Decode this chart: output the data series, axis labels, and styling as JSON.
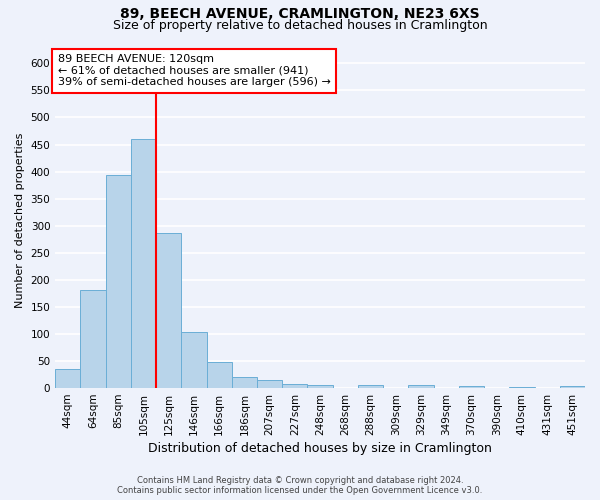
{
  "title": "89, BEECH AVENUE, CRAMLINGTON, NE23 6XS",
  "subtitle": "Size of property relative to detached houses in Cramlington",
  "xlabel": "Distribution of detached houses by size in Cramlington",
  "ylabel": "Number of detached properties",
  "footer_line1": "Contains HM Land Registry data © Crown copyright and database right 2024.",
  "footer_line2": "Contains public sector information licensed under the Open Government Licence v3.0.",
  "categories": [
    "44sqm",
    "64sqm",
    "85sqm",
    "105sqm",
    "125sqm",
    "146sqm",
    "166sqm",
    "186sqm",
    "207sqm",
    "227sqm",
    "248sqm",
    "268sqm",
    "288sqm",
    "309sqm",
    "329sqm",
    "349sqm",
    "370sqm",
    "390sqm",
    "410sqm",
    "431sqm",
    "451sqm"
  ],
  "values": [
    35,
    182,
    394,
    460,
    287,
    103,
    49,
    20,
    14,
    8,
    5,
    1,
    5,
    1,
    6,
    1,
    4,
    1,
    2,
    1,
    4
  ],
  "bar_color": "#b8d4ea",
  "bar_edgecolor": "#6aaed6",
  "vline_color": "red",
  "vline_x_index": 3.5,
  "annotation_text": "89 BEECH AVENUE: 120sqm\n← 61% of detached houses are smaller (941)\n39% of semi-detached houses are larger (596) →",
  "annotation_box_color": "white",
  "annotation_box_edgecolor": "red",
  "ylim": [
    0,
    620
  ],
  "yticks": [
    0,
    50,
    100,
    150,
    200,
    250,
    300,
    350,
    400,
    450,
    500,
    550,
    600
  ],
  "background_color": "#eef2fb",
  "grid_color": "white",
  "title_fontsize": 10,
  "subtitle_fontsize": 9,
  "xlabel_fontsize": 9,
  "ylabel_fontsize": 8,
  "tick_fontsize": 7.5,
  "ann_fontsize": 8
}
